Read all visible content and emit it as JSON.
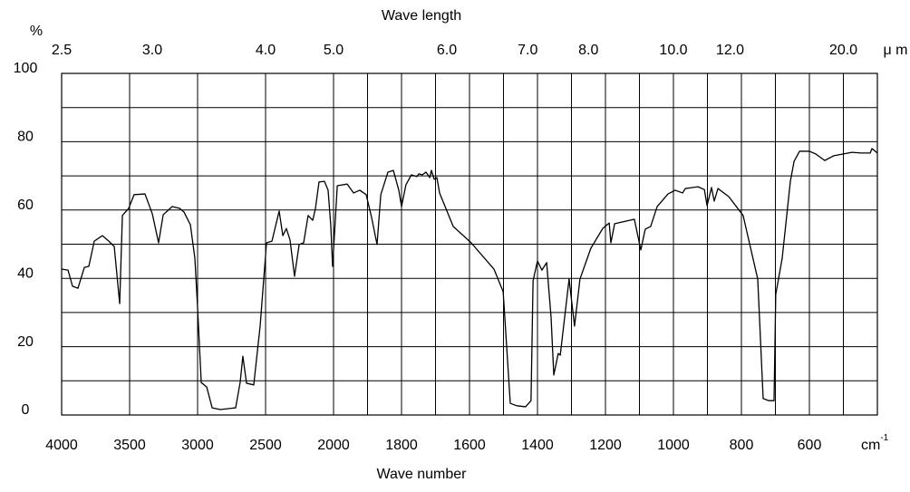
{
  "chart_data": {
    "type": "line",
    "x_label": "Wave number",
    "y_label": "%",
    "top_axis_label": "Wave length",
    "top_axis_unit": "μ m",
    "x_unit": "cm",
    "x_unit_exponent": "-1",
    "color": "#000000",
    "grid": true,
    "xlim": [
      4000,
      400
    ],
    "xticks": [
      4000,
      3500,
      3000,
      2500,
      2000,
      1800,
      1600,
      1400,
      1200,
      1000,
      800,
      600
    ],
    "x_minor_grid": [
      1900,
      1700,
      1500,
      1300,
      1100,
      900,
      700,
      500
    ],
    "ylim": [
      0,
      100
    ],
    "yticks": [
      0,
      20,
      40,
      60,
      80,
      100
    ],
    "y_minor_grid": [
      10,
      30,
      50,
      70,
      90
    ],
    "top_ticks": [
      2.5,
      {
        "value": 3,
        "label": "3.0"
      },
      {
        "value": 4,
        "label": "4.0"
      },
      {
        "value": 5,
        "label": "5.0"
      },
      {
        "value": 6,
        "label": "6.0"
      },
      {
        "value": 7,
        "label": "7.0"
      },
      {
        "value": 8,
        "label": "8.0"
      },
      {
        "value": 10,
        "label": "10.0"
      },
      {
        "value": 12,
        "label": "12.0"
      },
      {
        "value": 20,
        "label": "20.0"
      }
    ],
    "x": [
      4000,
      3953,
      3920,
      3880,
      3833,
      3800,
      3760,
      3700,
      3653,
      3613,
      3573,
      3553,
      3507,
      3467,
      3387,
      3333,
      3287,
      3253,
      3187,
      3133,
      3100,
      3053,
      3020,
      3000,
      2973,
      2933,
      2893,
      2833,
      2720,
      2687,
      2667,
      2640,
      2587,
      2540,
      2493,
      2453,
      2400,
      2373,
      2347,
      2320,
      2287,
      2253,
      2220,
      2187,
      2173,
      2153,
      2133,
      2107,
      2067,
      2040,
      2020,
      2007,
      1989,
      1960,
      1941,
      1923,
      1904,
      1888,
      1872,
      1861,
      1840,
      1824,
      1808,
      1800,
      1787,
      1771,
      1755,
      1749,
      1739,
      1728,
      1717,
      1712,
      1704,
      1696,
      1688,
      1648,
      1595,
      1528,
      1501,
      1480,
      1461,
      1435,
      1419,
      1413,
      1400,
      1387,
      1373,
      1360,
      1352,
      1339,
      1333,
      1307,
      1291,
      1275,
      1243,
      1208,
      1189,
      1184,
      1173,
      1115,
      1096,
      1083,
      1067,
      1048,
      1016,
      995,
      973,
      965,
      928,
      909,
      901,
      888,
      880,
      869,
      837,
      795,
      752,
      736,
      720,
      704,
      699,
      680,
      656,
      645,
      629,
      600,
      581,
      555,
      528,
      475,
      448,
      421,
      416,
      400
    ],
    "values": [
      42.7,
      42.4,
      37.7,
      37.1,
      43.2,
      43.5,
      50.9,
      52.5,
      50.9,
      49.3,
      32.6,
      58.4,
      60.5,
      64.5,
      64.7,
      58.9,
      50.4,
      58.6,
      61.0,
      60.5,
      59.4,
      55.7,
      45.9,
      31.3,
      9.5,
      8.2,
      2.1,
      1.6,
      2.1,
      9.5,
      17.2,
      9.3,
      8.8,
      26.0,
      50.4,
      50.9,
      59.7,
      52.5,
      54.6,
      51.2,
      40.6,
      49.9,
      50.4,
      58.4,
      57.8,
      57.0,
      60.5,
      68.2,
      68.4,
      65.8,
      55.2,
      43.5,
      67.1,
      67.6,
      65.0,
      65.8,
      64.5,
      57.8,
      49.9,
      64.5,
      71.1,
      71.6,
      65.8,
      61.0,
      67.4,
      70.3,
      69.8,
      70.6,
      70.3,
      71.1,
      69.5,
      71.6,
      69.0,
      69.5,
      65.0,
      55.2,
      50.4,
      42.7,
      36.1,
      3.4,
      2.7,
      2.4,
      4.2,
      39.3,
      45.1,
      42.4,
      44.6,
      28.6,
      11.7,
      18.0,
      17.5,
      39.8,
      26.0,
      39.8,
      48.8,
      54.6,
      56.2,
      50.4,
      56.0,
      57.3,
      48.3,
      54.4,
      55.2,
      61.0,
      64.7,
      65.8,
      65.0,
      66.3,
      66.8,
      66.0,
      61.3,
      66.6,
      62.6,
      66.3,
      63.9,
      58.4,
      39.8,
      4.8,
      4.2,
      4.2,
      35.3,
      45.9,
      68.4,
      74.3,
      77.2,
      77.2,
      76.4,
      74.5,
      75.9,
      76.9,
      76.7,
      76.7,
      78.0,
      76.7
    ]
  }
}
